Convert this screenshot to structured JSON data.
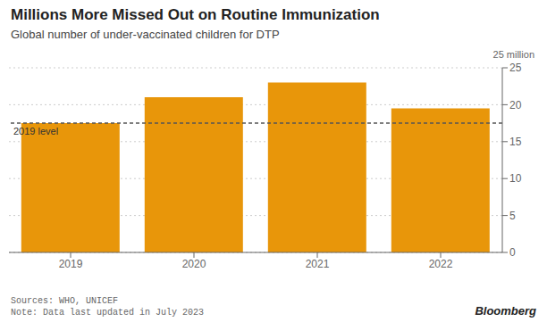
{
  "chart_data": {
    "type": "bar",
    "title": "Millions More Missed Out on Routine Immunization",
    "subtitle": "Global number of under-vaccinated children for DTP",
    "categories": [
      "2019",
      "2020",
      "2021",
      "2022"
    ],
    "values": [
      17.5,
      21.0,
      23.0,
      19.5
    ],
    "color": "#E8960A",
    "ylim": [
      0,
      25
    ],
    "yticks": [
      0,
      5,
      10,
      15,
      20,
      25
    ],
    "grid": true,
    "ylabel": "25 million",
    "annotations": [
      {
        "text": "2019 level",
        "y": 17.5,
        "line_style": "dashed",
        "color": "#555555"
      },
      {
        "text": "Sources: WHO, UNICEF\nNote: Data last updated in July 2023"
      },
      {
        "text": "Bloomberg"
      }
    ]
  }
}
